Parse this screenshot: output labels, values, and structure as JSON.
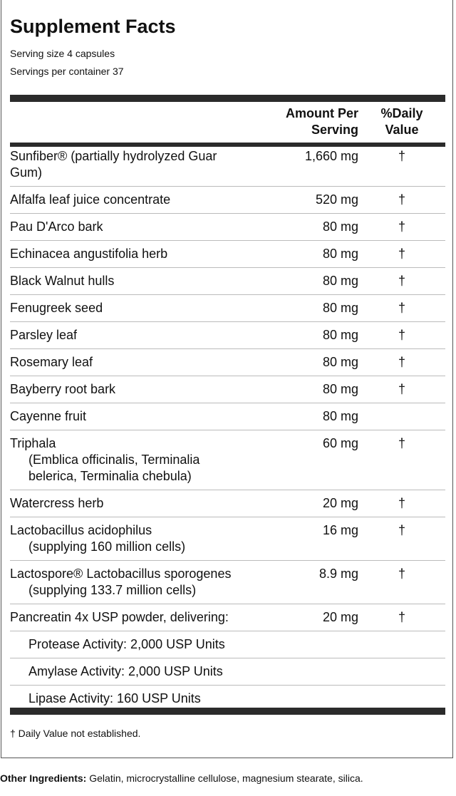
{
  "title": "Supplement Facts",
  "serving_size": "Serving size 4 capsules",
  "servings_per_container": "Servings per container 37",
  "header": {
    "amount_line1": "Amount Per",
    "amount_line2": "Serving",
    "dv_line1": "%Daily",
    "dv_line2": "Value"
  },
  "rows": [
    {
      "name": "Sunfiber® (partially hydrolyzed Guar Gum)",
      "sub": "",
      "amount": "1,660 mg",
      "dv": "†"
    },
    {
      "name": "Alfalfa leaf juice concentrate",
      "sub": "",
      "amount": "520 mg",
      "dv": "†"
    },
    {
      "name": "Pau D'Arco bark",
      "sub": "",
      "amount": "80 mg",
      "dv": "†"
    },
    {
      "name": "Echinacea angustifolia herb",
      "sub": "",
      "amount": "80 mg",
      "dv": "†"
    },
    {
      "name": "Black Walnut hulls",
      "sub": "",
      "amount": "80 mg",
      "dv": "†"
    },
    {
      "name": "Fenugreek seed",
      "sub": "",
      "amount": "80 mg",
      "dv": "†"
    },
    {
      "name": "Parsley leaf",
      "sub": "",
      "amount": "80 mg",
      "dv": "†"
    },
    {
      "name": "Rosemary leaf",
      "sub": "",
      "amount": "80 mg",
      "dv": "†"
    },
    {
      "name": "Bayberry root bark",
      "sub": "",
      "amount": "80 mg",
      "dv": "†"
    },
    {
      "name": "Cayenne fruit",
      "sub": "",
      "amount": "80 mg",
      "dv": ""
    },
    {
      "name": "Triphala",
      "sub": "(Emblica officinalis, Terminalia belerica, Terminalia chebula)",
      "amount": "60 mg",
      "dv": "†"
    },
    {
      "name": "Watercress herb",
      "sub": "",
      "amount": "20 mg",
      "dv": "†"
    },
    {
      "name": "Lactobacillus acidophilus",
      "sub": "(supplying 160 million cells)",
      "amount": "16 mg",
      "dv": "†"
    },
    {
      "name": "Lactospore® Lactobacillus sporogenes",
      "sub": "(supplying 133.7 million cells)",
      "amount": "8.9 mg",
      "dv": "†"
    },
    {
      "name": "Pancreatin 4x USP powder, delivering:",
      "sub": "",
      "amount": "20 mg",
      "dv": "†"
    },
    {
      "name": "Protease Activity: 2,000 USP Units",
      "sub": "",
      "amount": "",
      "dv": "",
      "indent": true
    },
    {
      "name": "Amylase Activity: 2,000 USP Units",
      "sub": "",
      "amount": "",
      "dv": "",
      "indent": true
    },
    {
      "name": "Lipase Activity: 160 USP Units",
      "sub": "",
      "amount": "",
      "dv": "",
      "indent": true
    }
  ],
  "footnote": "† Daily Value not established.",
  "other_label": "Other Ingredients:",
  "other_text": " Gelatin, microcrystalline cellulose, magnesium stearate, silica."
}
